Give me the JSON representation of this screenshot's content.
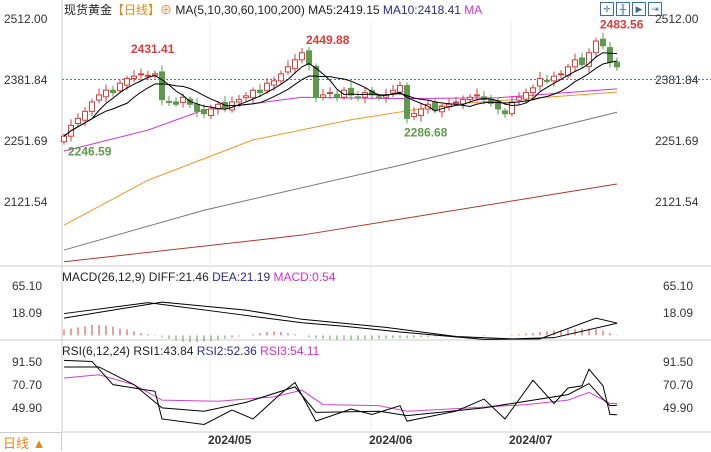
{
  "header": {
    "name": "现货黄金",
    "period": "【日线】",
    "ma_label": "MA(5,10,30,60,100,200)",
    "ma5": "MA5:2419.15",
    "ma10": "MA10:2418.41",
    "ma_more": "MA"
  },
  "macd_header": {
    "label": "MACD(26,12,9)",
    "diff": "DIFF:21.46",
    "dea": "DEA:21.19",
    "macd": "MACD:0.54"
  },
  "rsi_header": {
    "label": "RSI(6,12,24)",
    "rsi1": "RSI1:43.84",
    "rsi2": "RSI2:52.36",
    "rsi3": "RSI3:54.11"
  },
  "footer": {
    "period_button": "日线 ▲"
  },
  "toolbar_icons": [
    "crosshair-icon",
    "candle-icon",
    "play-icon",
    "next-icon"
  ],
  "colors": {
    "up": "#d0413e",
    "down": "#5e9a4c",
    "ma5": "#000000",
    "ma10": "#000000",
    "ma30": "#cc33cc",
    "ma60": "#e89a2a",
    "ma100": "#777777",
    "ma200": "#a83a2a",
    "rsi3": "#cc44cc",
    "last_price_line": "#3a7bd5"
  },
  "chart_data": [
    {
      "type": "candlestick",
      "title": "现货黄金",
      "yticks": [
        "2512.00",
        "2381.84",
        "2251.69",
        "2121.54"
      ],
      "ylim": [
        2100,
        2515
      ],
      "last_price": 2383,
      "xticks": [
        "2024/05",
        "2024/06",
        "2024/07"
      ],
      "xtick_index": [
        24,
        47,
        67
      ],
      "annotations": [
        {
          "text": "2431.41",
          "index": 9,
          "value": 2431.41,
          "color": "#d0413e"
        },
        {
          "text": "2449.88",
          "index": 34,
          "value": 2449.88,
          "color": "#d0413e"
        },
        {
          "text": "2483.56",
          "index": 76,
          "value": 2483.56,
          "color": "#d0413e"
        },
        {
          "text": "2246.59",
          "index": 0,
          "value": 2246.59,
          "color": "#5e9a4c"
        },
        {
          "text": "2286.68",
          "index": 48,
          "value": 2286.68,
          "color": "#5e9a4c"
        }
      ],
      "close": [
        2262,
        2285,
        2300,
        2315,
        2335,
        2350,
        2360,
        2355,
        2375,
        2385,
        2390,
        2395,
        2392,
        2395,
        2340,
        2335,
        2330,
        2345,
        2330,
        2315,
        2310,
        2320,
        2330,
        2322,
        2335,
        2340,
        2348,
        2360,
        2355,
        2375,
        2380,
        2395,
        2410,
        2425,
        2440,
        2415,
        2345,
        2350,
        2355,
        2345,
        2360,
        2350,
        2345,
        2355,
        2350,
        2345,
        2350,
        2360,
        2370,
        2300,
        2310,
        2320,
        2330,
        2318,
        2325,
        2330,
        2335,
        2340,
        2345,
        2350,
        2340,
        2332,
        2320,
        2310,
        2335,
        2345,
        2355,
        2365,
        2385,
        2380,
        2390,
        2395,
        2410,
        2425,
        2415,
        2440,
        2465,
        2455,
        2420,
        2410
      ],
      "ma_long": {
        "ma30": [
          [
            0,
            2230
          ],
          [
            12,
            2275
          ],
          [
            20,
            2318
          ],
          [
            34,
            2345
          ],
          [
            48,
            2342
          ],
          [
            62,
            2344
          ],
          [
            79,
            2363
          ]
        ],
        "ma60": [
          [
            0,
            2072
          ],
          [
            12,
            2168
          ],
          [
            27,
            2254
          ],
          [
            41,
            2297
          ],
          [
            55,
            2330
          ],
          [
            79,
            2356
          ]
        ],
        "ma100": [
          [
            0,
            2019
          ],
          [
            20,
            2104
          ],
          [
            48,
            2200
          ],
          [
            79,
            2313
          ]
        ],
        "ma200": [
          [
            0,
            1994
          ],
          [
            34,
            2051
          ],
          [
            79,
            2160
          ]
        ]
      }
    },
    {
      "type": "line",
      "title": "MACD(26,12,9)",
      "yticks": [
        "65.10",
        "18.09"
      ],
      "ylim": [
        -20,
        80
      ],
      "diff": [
        [
          0,
          38
        ],
        [
          12,
          57
        ],
        [
          24,
          38
        ],
        [
          34,
          22
        ],
        [
          40,
          16
        ],
        [
          48,
          6
        ],
        [
          60,
          -7
        ],
        [
          68,
          -6
        ],
        [
          76,
          30
        ],
        [
          79,
          21.46
        ]
      ],
      "dea": [
        [
          0,
          30
        ],
        [
          14,
          58
        ],
        [
          26,
          44
        ],
        [
          34,
          28
        ],
        [
          46,
          14
        ],
        [
          56,
          -2
        ],
        [
          64,
          -6
        ],
        [
          70,
          -4
        ],
        [
          79,
          21.19
        ]
      ],
      "hist": [
        10,
        12,
        14,
        16,
        18,
        18,
        17,
        15,
        12,
        10,
        7,
        4,
        2,
        1,
        -3,
        -6,
        -9,
        -11,
        -12,
        -12,
        -11,
        -10,
        -8,
        -6,
        -4,
        -2,
        0,
        2,
        4,
        6,
        7,
        6,
        4,
        2,
        0,
        -3,
        -5,
        -6,
        -7,
        -8,
        -8,
        -8,
        -8,
        -7,
        -7,
        -6,
        -6,
        -5,
        -5,
        -5,
        -4,
        -3,
        -3,
        -2,
        -1,
        0,
        1,
        0,
        0,
        0,
        -1,
        0,
        0,
        0,
        1,
        2,
        3,
        4,
        6,
        7,
        8,
        9,
        10,
        11,
        12,
        12,
        11,
        8,
        4,
        0.54
      ]
    },
    {
      "type": "line",
      "title": "RSI(6,12,24)",
      "yticks": [
        "91.50",
        "70.70",
        "49.90"
      ],
      "ylim": [
        30,
        100
      ],
      "rsi1": [
        [
          0,
          93
        ],
        [
          4,
          92
        ],
        [
          7,
          71
        ],
        [
          10,
          68
        ],
        [
          13,
          65
        ],
        [
          14,
          40
        ],
        [
          20,
          35
        ],
        [
          24,
          48
        ],
        [
          27,
          40
        ],
        [
          31,
          63
        ],
        [
          33,
          73
        ],
        [
          36,
          38
        ],
        [
          41,
          49
        ],
        [
          44,
          44
        ],
        [
          48,
          52
        ],
        [
          49,
          38
        ],
        [
          56,
          47
        ],
        [
          60,
          58
        ],
        [
          63,
          40
        ],
        [
          67,
          75
        ],
        [
          70,
          54
        ],
        [
          72,
          68
        ],
        [
          74,
          70
        ],
        [
          75,
          85
        ],
        [
          77,
          70
        ],
        [
          78,
          44
        ],
        [
          79,
          43.84
        ]
      ],
      "rsi2": [
        [
          0,
          87
        ],
        [
          5,
          87
        ],
        [
          10,
          71
        ],
        [
          14,
          50
        ],
        [
          20,
          47
        ],
        [
          26,
          55
        ],
        [
          33,
          69
        ],
        [
          36,
          46
        ],
        [
          45,
          47
        ],
        [
          49,
          43
        ],
        [
          60,
          50
        ],
        [
          66,
          56
        ],
        [
          72,
          62
        ],
        [
          75,
          72
        ],
        [
          77,
          58
        ],
        [
          78,
          52
        ],
        [
          79,
          52.36
        ]
      ],
      "rsi3": [
        [
          0,
          77
        ],
        [
          5,
          80
        ],
        [
          10,
          71
        ],
        [
          14,
          57
        ],
        [
          22,
          56
        ],
        [
          30,
          60
        ],
        [
          34,
          66
        ],
        [
          37,
          53
        ],
        [
          45,
          52
        ],
        [
          49,
          47
        ],
        [
          58,
          50
        ],
        [
          66,
          53
        ],
        [
          72,
          57
        ],
        [
          75,
          64
        ],
        [
          78,
          54
        ],
        [
          79,
          54.11
        ]
      ]
    }
  ]
}
